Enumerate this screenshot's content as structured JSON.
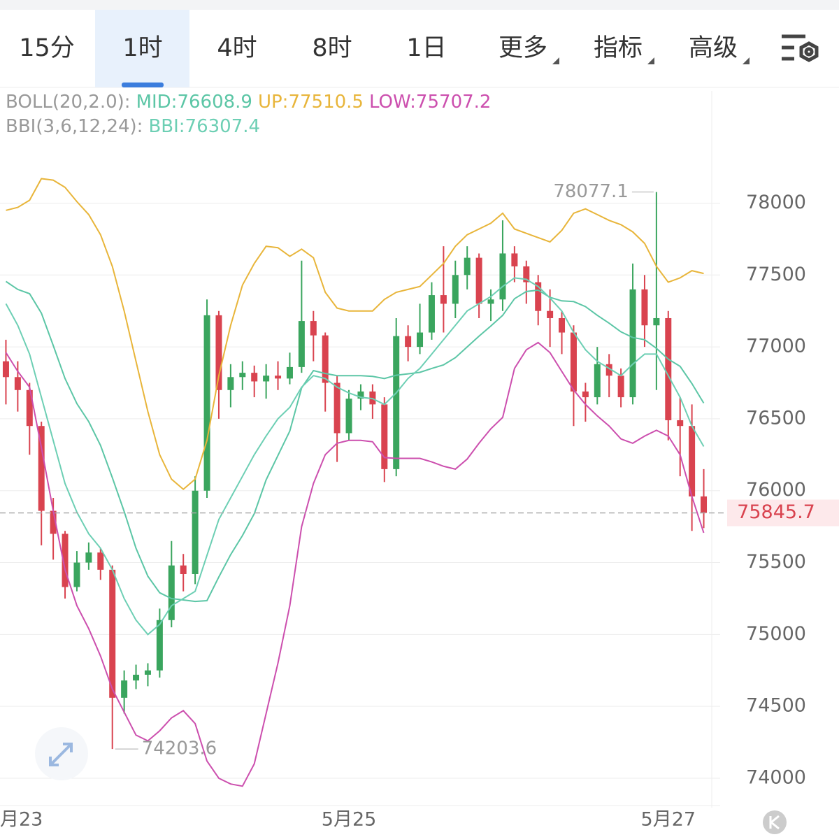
{
  "tabs": [
    "15分",
    "1时",
    "4时",
    "8时",
    "1日",
    "更多",
    "指标",
    "高级"
  ],
  "active_tab": 1,
  "chart_data": {
    "type": "candlestick",
    "indicator_prefixes": [
      "BOLL(20,2.0):",
      "BBI(3,6,12,24):"
    ],
    "categories": [
      "月23",
      null,
      null,
      null,
      null,
      null,
      null,
      null,
      null,
      null,
      null,
      null,
      null,
      null,
      null,
      null,
      null,
      null,
      null,
      null,
      null,
      null,
      null,
      null,
      null,
      null,
      null,
      null,
      null,
      "5月25",
      null,
      null,
      null,
      null,
      null,
      null,
      null,
      null,
      null,
      null,
      null,
      null,
      null,
      null,
      null,
      null,
      null,
      null,
      null,
      null,
      null,
      null,
      null,
      null,
      null,
      null,
      "5月27",
      null,
      null,
      null
    ],
    "open": [
      76900,
      76790,
      76700,
      76450,
      75860,
      75700,
      75330,
      75500,
      75570,
      75450,
      74560,
      74680,
      74720,
      74750,
      75100,
      75480,
      75420,
      76000,
      77220,
      76700,
      76790,
      76820,
      76760,
      76800,
      76780,
      76860,
      77180,
      77080,
      76750,
      76400,
      76640,
      76690,
      76600,
      76150,
      77075,
      77000,
      77100,
      77360,
      77300,
      77500,
      77620,
      77300,
      77330,
      77650,
      77560,
      77450,
      77250,
      77200,
      77100,
      76690,
      76650,
      76880,
      76800,
      76650,
      77400,
      77150,
      77200,
      76490,
      76450,
      75960
    ],
    "high": [
      77050,
      76900,
      76750,
      76480,
      75950,
      75720,
      75580,
      75640,
      75600,
      75480,
      74750,
      74790,
      74800,
      75180,
      75650,
      75560,
      76100,
      77330,
      77250,
      76880,
      76900,
      76870,
      76880,
      76900,
      76960,
      77600,
      77250,
      77100,
      76800,
      76700,
      76740,
      76740,
      76650,
      77200,
      77150,
      77300,
      77450,
      77700,
      77600,
      77700,
      77650,
      77400,
      77880,
      77700,
      77600,
      77500,
      77400,
      77250,
      77150,
      76750,
      77000,
      76950,
      76850,
      77580,
      77500,
      78077.1,
      77250,
      76650,
      76600,
      76150
    ],
    "low": [
      76600,
      76550,
      76250,
      75620,
      75520,
      75250,
      75300,
      75450,
      75380,
      74203.6,
      74450,
      74620,
      74640,
      74700,
      75050,
      75300,
      75350,
      75950,
      76500,
      76580,
      76700,
      76650,
      76640,
      76700,
      76740,
      76820,
      76900,
      76550,
      76200,
      76350,
      76560,
      76500,
      76060,
      76100,
      76900,
      76950,
      77050,
      77100,
      77200,
      77400,
      77200,
      77180,
      77250,
      77450,
      77300,
      77150,
      77000,
      76950,
      76450,
      76480,
      76600,
      76650,
      76580,
      76600,
      77000,
      76700,
      76350,
      76100,
      75720,
      75740
    ],
    "close": [
      76790,
      76700,
      76450,
      75860,
      75700,
      75330,
      75500,
      75570,
      75450,
      74560,
      74680,
      74720,
      74750,
      75100,
      75480,
      75420,
      76000,
      77220,
      76700,
      76790,
      76820,
      76760,
      76800,
      76780,
      76860,
      77180,
      77080,
      76750,
      76400,
      76640,
      76690,
      76600,
      76150,
      77075,
      77000,
      77100,
      77360,
      77300,
      77500,
      77620,
      77300,
      77330,
      77650,
      77560,
      77450,
      77250,
      77200,
      77100,
      76690,
      76650,
      76880,
      76800,
      76650,
      77400,
      77150,
      77200,
      76490,
      76450,
      75960,
      75845.7
    ],
    "up_color": "#3aa55e",
    "down_color": "#d9434f",
    "series": [
      {
        "label": "MID:76608.9",
        "color": "#5cc6a6",
        "group": 0,
        "values": [
          77455,
          77400,
          77370,
          77235,
          77010,
          76780,
          76605,
          76480,
          76315,
          76090,
          75855,
          75600,
          75405,
          75290,
          75250,
          75240,
          75230,
          75235,
          75400,
          75555,
          75688,
          75840,
          76075,
          76245,
          76415,
          76715,
          76835,
          76815,
          76800,
          76800,
          76800,
          76795,
          76780,
          76803,
          76813,
          76823,
          76850,
          76875,
          76925,
          77000,
          77075,
          77145,
          77220,
          77335,
          77385,
          77395,
          77345,
          77320,
          77315,
          77280,
          77220,
          77165,
          77105,
          77065,
          77050,
          76990,
          76915,
          76865,
          76745,
          76608.9
        ]
      },
      {
        "label": "UP:77510.5",
        "color": "#e8b53a",
        "group": 0,
        "values": [
          77950,
          77970,
          78020,
          78170,
          78160,
          78110,
          78010,
          77920,
          77780,
          77560,
          77250,
          76900,
          76550,
          76250,
          76080,
          76010,
          76080,
          76350,
          76800,
          77150,
          77430,
          77580,
          77700,
          77690,
          77630,
          77680,
          77620,
          77380,
          77270,
          77250,
          77250,
          77250,
          77330,
          77380,
          77400,
          77420,
          77500,
          77580,
          77700,
          77780,
          77820,
          77860,
          77930,
          77820,
          77790,
          77760,
          77730,
          77810,
          77930,
          77960,
          77920,
          77880,
          77850,
          77800,
          77720,
          77560,
          77450,
          77480,
          77530,
          77510.5
        ]
      },
      {
        "label": "LOW:75707.2",
        "color": "#cc4fae",
        "group": 0,
        "values": [
          76960,
          76830,
          76720,
          76300,
          75860,
          75450,
          75200,
          75040,
          74850,
          74620,
          74460,
          74300,
          74260,
          74330,
          74420,
          74470,
          74380,
          74120,
          74000,
          73960,
          73945,
          74100,
          74450,
          74800,
          75200,
          75750,
          76050,
          76250,
          76330,
          76350,
          76350,
          76340,
          76230,
          76225,
          76225,
          76225,
          76200,
          76170,
          76150,
          76220,
          76330,
          76430,
          76510,
          76850,
          76980,
          77030,
          76960,
          76830,
          76700,
          76600,
          76520,
          76450,
          76360,
          76330,
          76380,
          76420,
          76380,
          76250,
          75960,
          75707.2
        ]
      },
      {
        "label": "BBI:76307.4",
        "color": "#6dcfb4",
        "group": 1,
        "values": [
          77300,
          77150,
          76950,
          76650,
          76350,
          76050,
          75850,
          75700,
          75600,
          75450,
          75250,
          75100,
          75000,
          75070,
          75200,
          75250,
          75300,
          75550,
          75800,
          75950,
          76100,
          76250,
          76380,
          76500,
          76580,
          76720,
          76800,
          76780,
          76720,
          76680,
          76650,
          76640,
          76600,
          76680,
          76780,
          76850,
          76950,
          77050,
          77150,
          77250,
          77300,
          77350,
          77420,
          77480,
          77470,
          77420,
          77340,
          77250,
          77100,
          76980,
          76900,
          76850,
          76800,
          76880,
          76950,
          76950,
          76800,
          76650,
          76450,
          76307.4
        ]
      }
    ],
    "high_label": 78077.1,
    "low_label": 74203.6,
    "last_price": 75845.7,
    "ylim": [
      73820,
      78440
    ],
    "yticks": [
      74000,
      74500,
      75000,
      75500,
      76000,
      76500,
      77000,
      77500,
      78000
    ],
    "grid": true
  }
}
